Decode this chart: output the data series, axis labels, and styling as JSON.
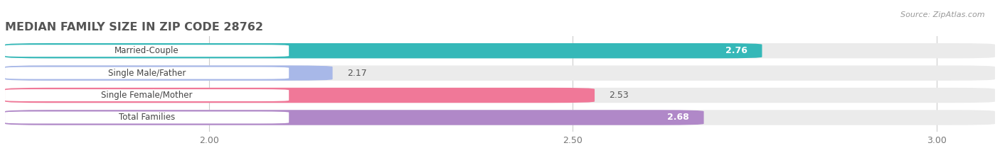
{
  "title": "MEDIAN FAMILY SIZE IN ZIP CODE 28762",
  "source": "Source: ZipAtlas.com",
  "categories": [
    "Married-Couple",
    "Single Male/Father",
    "Single Female/Mother",
    "Total Families"
  ],
  "values": [
    2.76,
    2.17,
    2.53,
    2.68
  ],
  "bar_colors": [
    "#35b8b8",
    "#a8b8e8",
    "#f07898",
    "#b088c8"
  ],
  "bar_bg_colors": [
    "#ebebeb",
    "#ebebeb",
    "#ebebeb",
    "#ebebeb"
  ],
  "xlim": [
    1.72,
    3.08
  ],
  "xticks": [
    2.0,
    2.5,
    3.0
  ],
  "background_color": "#ffffff",
  "bar_height": 0.68,
  "title_fontsize": 11.5,
  "tick_fontsize": 9,
  "value_fontsize": 9,
  "label_fontsize": 8.5,
  "value_inside_color": "#ffffff",
  "value_outside_color": "#555555"
}
